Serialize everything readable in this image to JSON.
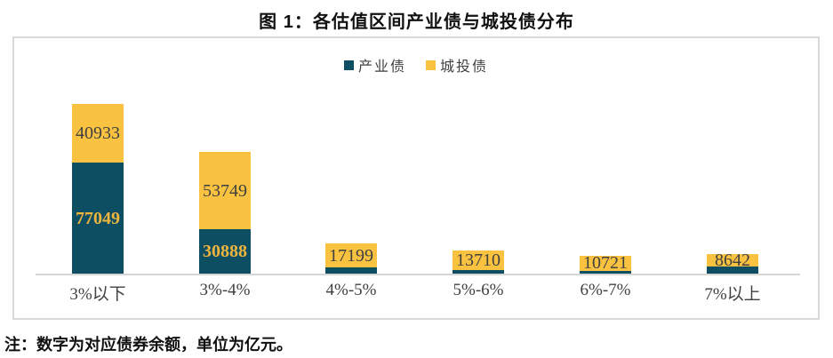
{
  "title": "图 1：各估值区间产业债与城投债分布",
  "note": "注：数字为对应债券余额，单位为亿元。",
  "colors": {
    "industrial_bond": "#0D4E63",
    "urban_investment_bond": "#F9C341",
    "label_on_teal": "#EFB53C",
    "label_on_gold": "#404040",
    "frame_and_axis": "#D9D9D9"
  },
  "chart_data": {
    "type": "bar",
    "stacked": true,
    "title": "图 1：各估值区间产业债与城投债分布",
    "xlabel": "",
    "ylabel": "",
    "grid": false,
    "legend_position": "top-center",
    "categories": [
      "3%以下",
      "3%-4%",
      "4%-5%",
      "5%-6%",
      "6%-7%",
      "7%以上"
    ],
    "series": [
      {
        "name": "产业债",
        "color": "#0D4E63",
        "label_color": "#EFB53C",
        "values": [
          77049,
          30888,
          4100,
          2500,
          1900,
          5000
        ],
        "labels_shown": [
          true,
          true,
          false,
          false,
          false,
          false
        ],
        "values_estimated_from_pixels": [
          false,
          false,
          true,
          true,
          true,
          true
        ]
      },
      {
        "name": "城投债",
        "color": "#F9C341",
        "label_color": "#404040",
        "values": [
          40933,
          53749,
          17199,
          13710,
          10721,
          8642
        ],
        "labels_shown": [
          true,
          true,
          true,
          true,
          true,
          true
        ],
        "values_estimated_from_pixels": [
          false,
          false,
          false,
          false,
          false,
          false
        ]
      }
    ]
  }
}
